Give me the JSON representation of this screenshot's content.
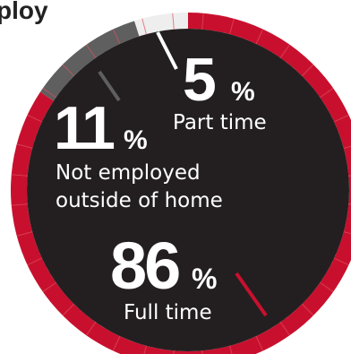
{
  "title_fragment": "ploy",
  "colors": {
    "full_time": "#c8102e",
    "not_employed": "#5f5f5f",
    "part_time": "#eeeeee",
    "center": "#231f20",
    "tick": "#e05060"
  },
  "chart_data": {
    "type": "pie",
    "title": "",
    "legend": "none",
    "slices": [
      {
        "label": "Part time",
        "value": 5,
        "value_text": "5",
        "unit": "%"
      },
      {
        "label": "Not employed outside of home",
        "label_lines": [
          "Not employed",
          "outside of home"
        ],
        "value": 11,
        "value_text": "11",
        "unit": "%"
      },
      {
        "label": "Full time",
        "value": 86,
        "value_text": "86",
        "unit": "%"
      }
    ]
  }
}
